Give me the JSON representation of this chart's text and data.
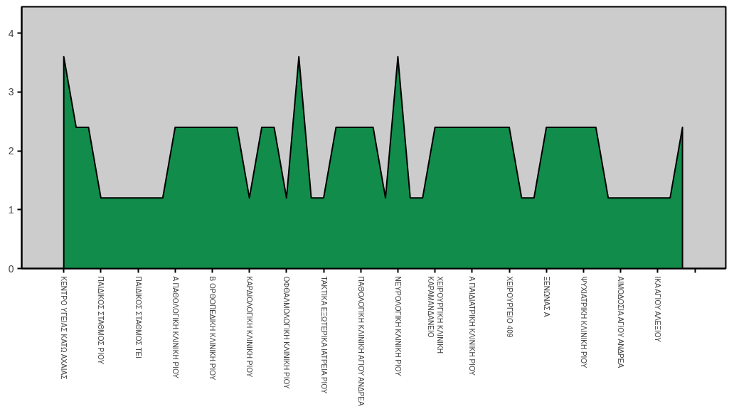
{
  "chart_data": {
    "type": "area",
    "categories": [
      "ΚΕΝΤΡΟ ΥΓΕΙΑΣ ΚΑΤΩ ΑΧΑΙΑΣ",
      null,
      null,
      "ΠΑΙΔΙΚΟΣ ΣΤΑΘΜΟΣ ΡΙΟΥ",
      null,
      null,
      "ΠΑΙΔΙΚΟΣ ΣΤΑΘΜΟΣ ΤΕΙ",
      null,
      null,
      "Α ΠΑΘΟΛΟΓΙΚΗ ΚΛΙΝΙΚΗ ΡΙΟΥ",
      null,
      null,
      "Β ΟΡΘΟΠΕΔΙΚΗ ΚΛΙΝΙΚΗ ΡΙΟΥ",
      null,
      null,
      "ΚΑΡΔΙΟΛΟΓΙΚΗ ΚΛΙΝΙΚΗ ΡΙΟΥ",
      null,
      null,
      "ΟΦΘΑΛΜΟΛΟΓΙΚΗ ΚΛΙΝΙΚΗ ΡΙΟΥ",
      null,
      null,
      "ΤΑΚΤΙΚΑ ΕΞΩΤΕΡΙΚΑ ΙΑΤΡΕΙΑ ΡΙΟΥ",
      null,
      null,
      "ΠΑΘΟΛΟΓΙΚΗ ΚΛΙΝΙΚΗ ΑΓΙΟΥ ΑΝΔΡΕΑ",
      null,
      null,
      "ΝΕΥΡΟΛΟΓΙΚΗ ΚΛΙΝΙΚΗ ΡΙΟΥ",
      null,
      null,
      "ΧΕΙΡΟΥΡΓΙΚΗ ΚΛΙΝΙΚΗ\nΚΑΡΑΜΑΝΔΑΝΕΙΟ",
      null,
      null,
      "Α ΠΑΙΔΙΑΤΡΙΚΗ ΚΛΙΝΙΚΗ ΡΙΟΥ",
      null,
      null,
      "ΧΕΙΡΟΥΡΓΕΙΟ 409",
      null,
      null,
      "ΞΕΝΩΝΑΣ Α",
      null,
      null,
      "ΨΥΧΙΑΤΡΙΚΗ ΚΛΙΝΙΚΗ ΡΙΟΥ",
      null,
      null,
      "ΑΙΜΟΔΟΣΙΑ ΑΓΙΟΥ ΑΝΔΡΕΑ",
      null,
      null,
      "ΙΚΑ ΑΓΙΟΥ ΑΛΕΞΙΟΥ",
      null,
      null,
      null
    ],
    "values": [
      3.6,
      2.4,
      2.4,
      1.2,
      1.2,
      1.2,
      1.2,
      1.2,
      1.2,
      2.4,
      2.4,
      2.4,
      2.4,
      2.4,
      2.4,
      1.2,
      2.4,
      2.4,
      1.2,
      3.6,
      1.2,
      1.2,
      2.4,
      2.4,
      2.4,
      2.4,
      1.2,
      3.6,
      1.2,
      1.2,
      2.4,
      2.4,
      2.4,
      2.4,
      2.4,
      2.4,
      2.4,
      1.2,
      1.2,
      2.4,
      2.4,
      2.4,
      2.4,
      2.4,
      1.2,
      1.2,
      1.2,
      1.2,
      1.2,
      1.2,
      2.4,
      null
    ],
    "color": "#118c4a",
    "ylim": [
      0,
      4.45
    ],
    "yticks": [
      0,
      1,
      2,
      3,
      4
    ],
    "grid": false
  }
}
